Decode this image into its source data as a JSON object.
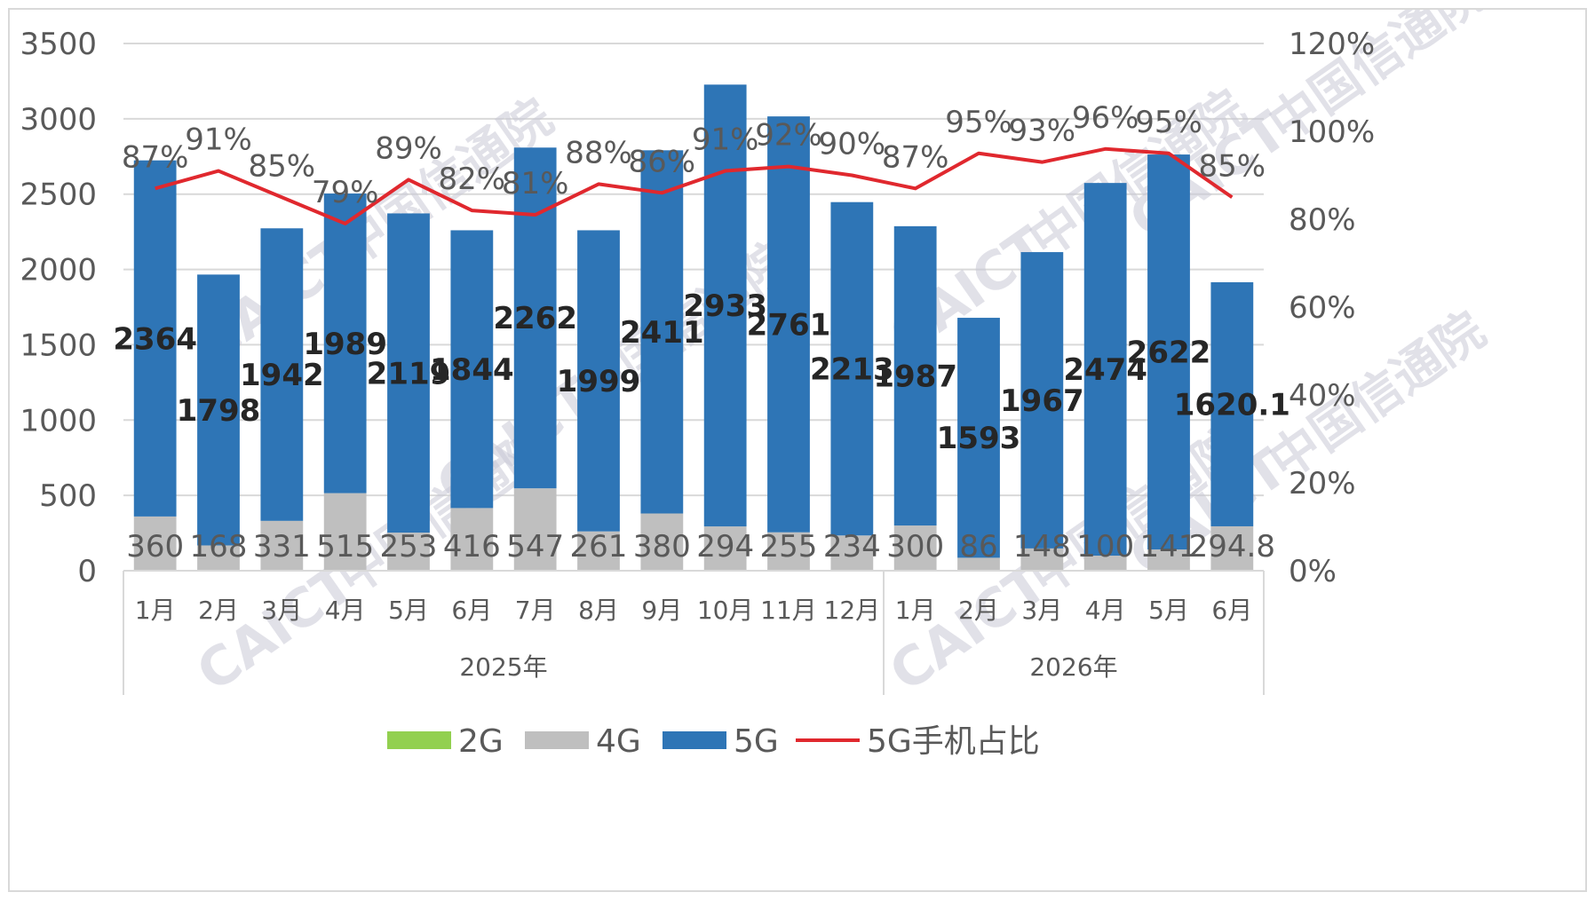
{
  "chart_data": {
    "type": "bar",
    "stacked": true,
    "categories": [
      "1月",
      "2月",
      "3月",
      "4月",
      "5月",
      "6月",
      "7月",
      "8月",
      "9月",
      "10月",
      "11月",
      "12月",
      "1月",
      "2月",
      "3月",
      "4月",
      "5月",
      "6月"
    ],
    "groups": [
      {
        "label": "2025年",
        "count": 12
      },
      {
        "label": "2026年",
        "count": 6
      }
    ],
    "series": [
      {
        "name": "2G",
        "type": "bar",
        "axis": "left",
        "color": "#92d050",
        "values": [
          0,
          0,
          0,
          0,
          0,
          0,
          0,
          0,
          0,
          0,
          0,
          0,
          0,
          0,
          0,
          0,
          0,
          0
        ]
      },
      {
        "name": "4G",
        "type": "bar",
        "axis": "left",
        "color": "#bfbfbf",
        "values": [
          360,
          168,
          331,
          515,
          253,
          416,
          547,
          261,
          380,
          294,
          255,
          234,
          300,
          86,
          148,
          100,
          141,
          294.8
        ],
        "labels": [
          "360",
          "168",
          "331",
          "515",
          "253",
          "416",
          "547",
          "261",
          "380",
          "294",
          "255",
          "234",
          "300",
          "86",
          "148",
          "100",
          "141",
          "294.8"
        ]
      },
      {
        "name": "5G",
        "type": "bar",
        "axis": "left",
        "color": "#2e75b6",
        "values": [
          2364,
          1798,
          1942,
          1989,
          2119,
          1844,
          2262,
          1999,
          2411,
          2933,
          2761,
          2213,
          1987,
          1593,
          1967,
          2474,
          2622,
          1620.1
        ],
        "labels": [
          "2364",
          "1798",
          "1942",
          "1989",
          "2119",
          "1844",
          "2262",
          "1999",
          "2411",
          "2933",
          "2761",
          "2213",
          "1987",
          "1593",
          "1967",
          "2474",
          "2622",
          "1620.1"
        ]
      },
      {
        "name": "5G手机占比",
        "type": "line",
        "axis": "right",
        "color": "#e0282e",
        "values": [
          87,
          91,
          85,
          79,
          89,
          82,
          81,
          88,
          86,
          91,
          92,
          90,
          87,
          95,
          93,
          96,
          95,
          85
        ],
        "labels": [
          "87%",
          "91%",
          "85%",
          "79%",
          "89%",
          "82%",
          "81%",
          "88%",
          "86%",
          "91%",
          "92%",
          "90%",
          "87%",
          "95%",
          "93%",
          "96%",
          "95%",
          "85%"
        ]
      }
    ],
    "y_left": {
      "range": [
        0,
        3500
      ],
      "ticks": [
        "0",
        "500",
        "1000",
        "1500",
        "2000",
        "2500",
        "3000",
        "3500"
      ]
    },
    "y_right": {
      "range": [
        0,
        120
      ],
      "ticks": [
        "0%",
        "20%",
        "40%",
        "60%",
        "80%",
        "100%",
        "120%"
      ]
    },
    "grid": true,
    "legend_position": "bottom"
  },
  "watermark": {
    "text_latin": "CAICT",
    "text_cn": "中国信通院"
  }
}
